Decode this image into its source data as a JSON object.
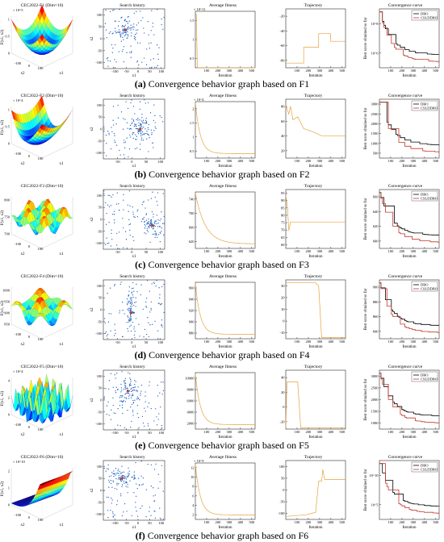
{
  "figure": {
    "rows": [
      {
        "id": "f1",
        "caption_letter": "(a)",
        "caption_text": "Convergence behavior graph based on F1",
        "surface_title": "CEC2022-F1 (Dim=10)",
        "surface_scale": "× 10^5",
        "surface_zticks": [
          "1",
          "0.5",
          "0"
        ],
        "surface_zlabel": "F(x1, x2)",
        "surface_xticks": [
          "-100",
          "0",
          "100"
        ],
        "search_title": "Search history",
        "search_xticks": [
          "-100",
          "-50",
          "0",
          "50",
          "100"
        ],
        "search_yticks": [
          "100",
          "50",
          "0",
          "-50",
          "-100"
        ],
        "avg_title": "Average fitness",
        "avg_scale": "× 10^11",
        "avg_yticks": [
          "1.5",
          "1",
          "0.5"
        ],
        "avg_xticks": [
          "100",
          "200",
          "300",
          "400",
          "500"
        ],
        "traj_title": "Trajectory",
        "traj_yticks": [
          "-20",
          "-40",
          "-60",
          "-80"
        ],
        "traj_xticks": [
          "100",
          "200",
          "300",
          "400",
          "500"
        ],
        "conv_title": "Convergence curve",
        "conv_yticks": [
          "10^8",
          "10^6"
        ],
        "conv_xticks": [
          "100",
          "200",
          "300",
          "400",
          "500"
        ]
      },
      {
        "id": "f2",
        "caption_letter": "(b)",
        "caption_text": "Convergence behavior graph based on F2",
        "surface_title": "CEC2022-F2 (Dim=10)",
        "surface_scale": "× 10^4",
        "surface_zticks": [
          "1",
          "0.5",
          "0"
        ],
        "surface_zlabel": "F(x1, x2)",
        "surface_xticks": [
          "-100",
          "0",
          "100"
        ],
        "search_title": "Search history",
        "search_xticks": [
          "-50",
          "0",
          "50",
          "100"
        ],
        "search_yticks": [
          "100",
          "50",
          "0",
          "-50",
          "-100"
        ],
        "avg_title": "Average fitness",
        "avg_scale": "× 10^4",
        "avg_yticks": [
          "2",
          "1.5",
          "1",
          "0.5"
        ],
        "avg_xticks": [
          "100",
          "200",
          "300",
          "400",
          "500"
        ],
        "traj_title": "Trajectory",
        "traj_yticks": [
          "80",
          "60",
          "40",
          "20"
        ],
        "traj_xticks": [
          "100",
          "200",
          "300",
          "400",
          "500"
        ],
        "conv_title": "Convergence curve",
        "conv_yticks": [
          "3000",
          "2500",
          "2000",
          "1500",
          "1000",
          "500"
        ],
        "conv_xticks": [
          "100",
          "200",
          "300",
          "400",
          "500"
        ]
      },
      {
        "id": "f3",
        "caption_letter": "(c)",
        "caption_text": "Convergence behavior graph based on F3",
        "surface_title": "CEC2022-F3 (Dim=10)",
        "surface_scale": "",
        "surface_zticks": [
          "800",
          "750",
          "700"
        ],
        "surface_zlabel": "F(x1, x2)",
        "surface_xticks": [
          "-100",
          "0",
          "100"
        ],
        "search_title": "Search history",
        "search_xticks": [
          "-50",
          "0",
          "50",
          "100"
        ],
        "search_yticks": [
          "100",
          "50",
          "0",
          "-50",
          "-100"
        ],
        "avg_title": "Average fitness",
        "avg_scale": "",
        "avg_yticks": [
          "740",
          "700",
          "660",
          "620"
        ],
        "avg_xticks": [
          "100",
          "200",
          "300",
          "400",
          "500"
        ],
        "traj_title": "Trajectory",
        "traj_yticks": [
          "95",
          "90",
          "85",
          "80",
          "75",
          "70",
          "65",
          "60"
        ],
        "traj_xticks": [
          "100",
          "200",
          "300",
          "400",
          "500"
        ],
        "conv_title": "Convergence curve",
        "conv_yticks": [
          "660",
          "640",
          "620",
          "600"
        ],
        "conv_xticks": [
          "100",
          "200",
          "300",
          "400",
          "500"
        ]
      },
      {
        "id": "f4",
        "caption_letter": "(d)",
        "caption_text": "Convergence behavior graph based on F4",
        "surface_title": "CEC2022-F4 (Dim=10)",
        "surface_scale": "",
        "surface_zticks": [
          "1000",
          "950",
          "900",
          "850"
        ],
        "surface_zlabel": "F(x1, x2)",
        "surface_xticks": [
          "-100",
          "0",
          "100"
        ],
        "search_title": "Search history",
        "search_xticks": [
          "-50",
          "0",
          "50",
          "100"
        ],
        "search_yticks": [
          "100",
          "50",
          "0",
          "-50",
          "-100"
        ],
        "avg_title": "Average fitness",
        "avg_scale": "",
        "avg_yticks": [
          "960",
          "940",
          "920",
          "900",
          "880"
        ],
        "avg_xticks": [
          "100",
          "200",
          "300",
          "400",
          "500"
        ],
        "traj_title": "Trajectory",
        "traj_yticks": [
          "30",
          "20",
          "10",
          "0",
          "-10"
        ],
        "traj_xticks": [
          "100",
          "200",
          "300",
          "400",
          "500"
        ],
        "conv_title": "Convergence curve",
        "conv_yticks": [
          "900",
          "880",
          "860",
          "840"
        ],
        "conv_xticks": [
          "100",
          "200",
          "300",
          "400",
          "500"
        ]
      },
      {
        "id": "f5",
        "caption_letter": "(e)",
        "caption_text": "Convergence behavior graph based on F5",
        "surface_title": "CEC2022-F5 (Dim=10)",
        "surface_scale": "× 10^4",
        "surface_zticks": [
          "4",
          "2",
          "0"
        ],
        "surface_zlabel": "F(x1, x2)",
        "surface_xticks": [
          "-100",
          "0",
          "100"
        ],
        "search_title": "Search history",
        "search_xticks": [
          "-100",
          "-50",
          "0",
          "50",
          "100"
        ],
        "search_yticks": [
          "100",
          "50",
          "0",
          "-50",
          "-100"
        ],
        "avg_title": "Average fitness",
        "avg_scale": "",
        "avg_yticks": [
          "10000",
          "8000",
          "6000",
          "4000",
          "2000"
        ],
        "avg_xticks": [
          "100",
          "200",
          "300",
          "400",
          "500"
        ],
        "traj_title": "Trajectory",
        "traj_yticks": [
          "40",
          "20",
          "0",
          "-20"
        ],
        "traj_xticks": [
          "100",
          "200",
          "300",
          "400",
          "500"
        ],
        "conv_title": "Convergence curve",
        "conv_yticks": [
          "3000",
          "2500",
          "2000",
          "1500",
          "1000"
        ],
        "conv_xticks": [
          "100",
          "200",
          "300",
          "400",
          "500"
        ]
      },
      {
        "id": "f6",
        "caption_letter": "(f)",
        "caption_text": "Convergence behavior graph based on F6",
        "surface_title": "CEC2022-F6 (Dim=10)",
        "surface_scale": "× 10^10",
        "surface_zticks": [
          "2",
          "1",
          "0"
        ],
        "surface_zlabel": "F(x1, x2)",
        "surface_xticks": [
          "-100",
          "0",
          "100"
        ],
        "search_title": "Search history",
        "search_xticks": [
          "-100",
          "-50",
          "0",
          "50",
          "100"
        ],
        "search_yticks": [
          "100",
          "50",
          "0",
          "-50",
          "-100"
        ],
        "avg_title": "Average fitness",
        "avg_scale": "× 10^9",
        "avg_yticks": [
          "12",
          "10",
          "8",
          "6",
          "4",
          "2"
        ],
        "avg_xticks": [
          "100",
          "200",
          "300",
          "400",
          "500"
        ],
        "traj_title": "Trajectory",
        "traj_yticks": [
          "100",
          "50",
          "0",
          "-50",
          "-100"
        ],
        "traj_xticks": [
          "100",
          "200",
          "300",
          "400",
          "500"
        ],
        "conv_title": "Convergence curve",
        "conv_yticks": [
          "10^10",
          "10^5"
        ],
        "conv_xticks": [
          "100",
          "200",
          "300",
          "400",
          "500"
        ]
      }
    ],
    "labels": {
      "iteration": "Iteration",
      "x1": "x1",
      "x2": "x2",
      "best_score": "Best score obtained so far",
      "surf_x1": "x1",
      "surf_x2": "x2"
    },
    "legend": {
      "dbo": "DBO",
      "csl": "CSLDDBO"
    },
    "colors": {
      "dbo": "#000000",
      "csl": "#c0392b",
      "fitness": "#e6a23c",
      "scatter": "#1f5fbf",
      "best": "#c0392b"
    }
  }
}
